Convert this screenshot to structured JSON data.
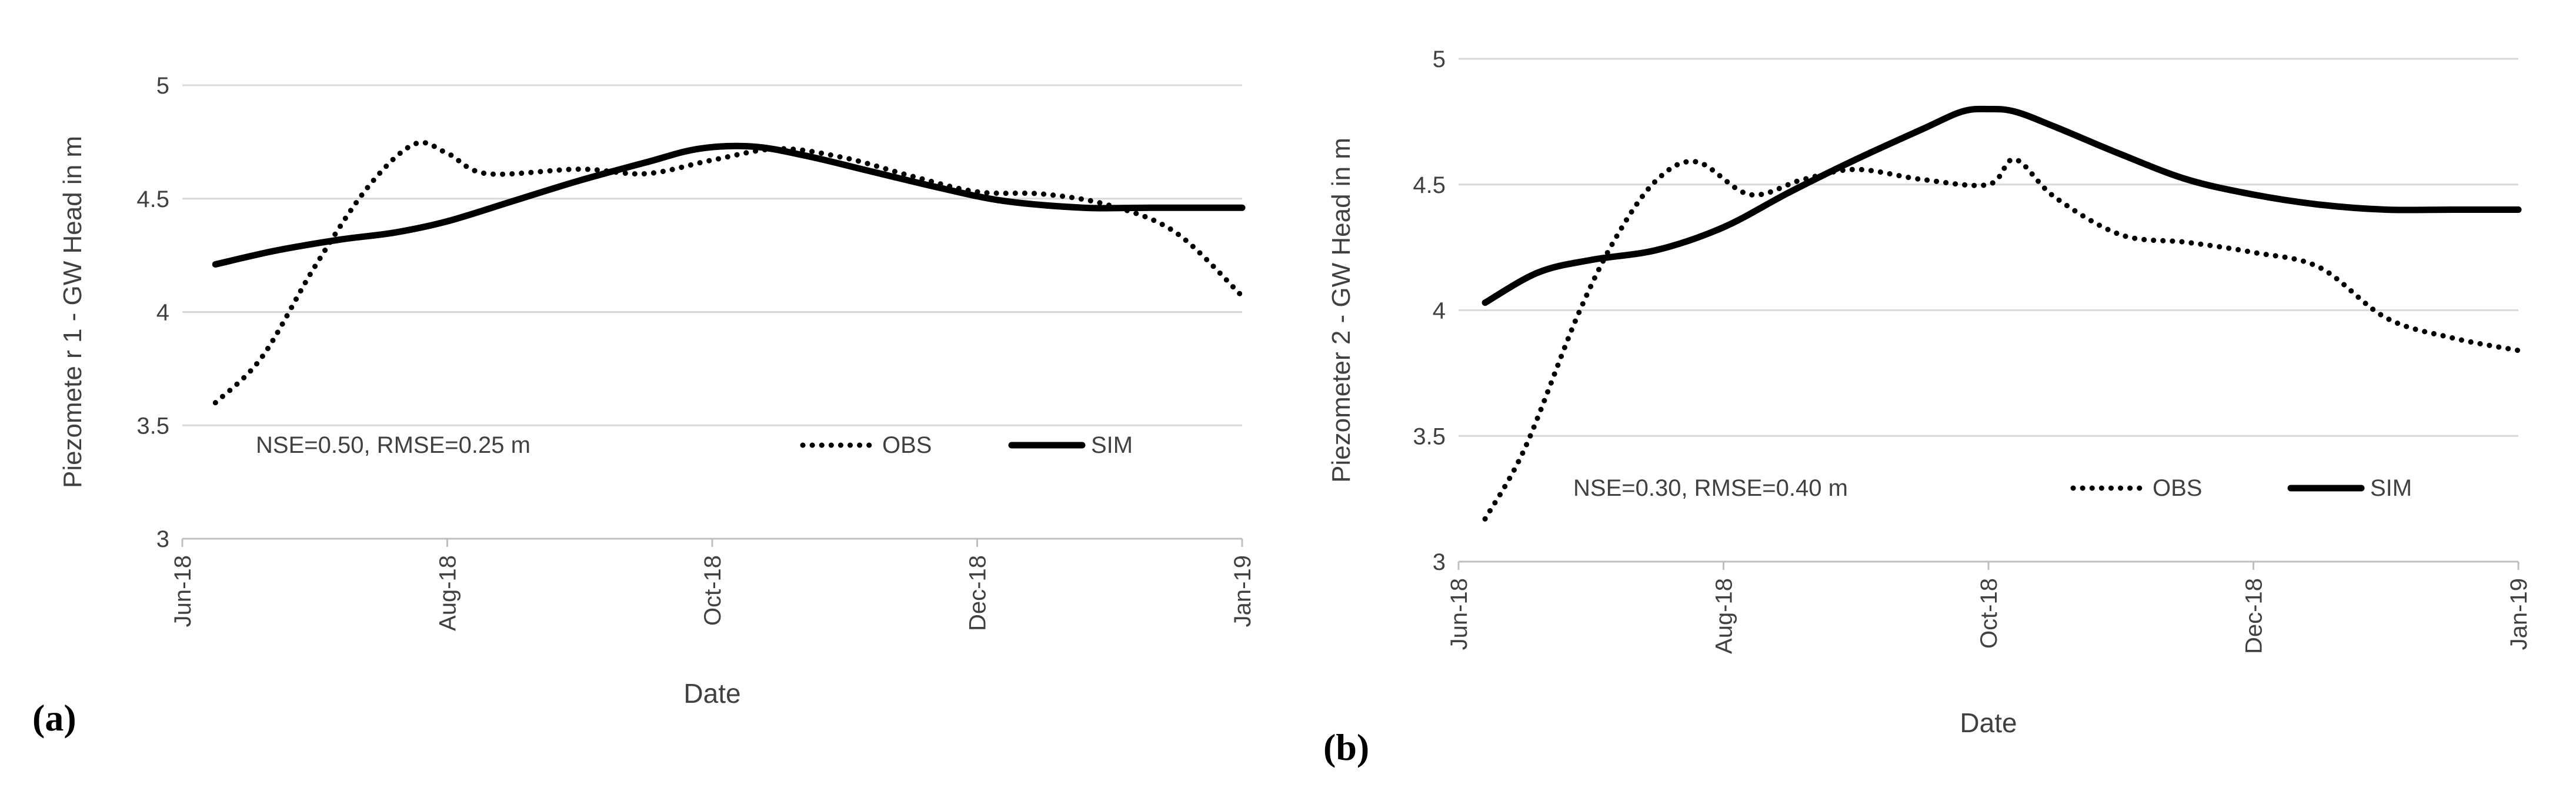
{
  "colors": {
    "grid": "#d9d9d9",
    "line": "#000000",
    "text": "#404040",
    "background": "#ffffff"
  },
  "chart_data": [
    {
      "type": "line",
      "panel_label": "(a)",
      "title": "",
      "xlabel": "Date",
      "ylabel": "Piezomete r 1 - GW Head in m",
      "x_tick_labels": [
        "Jun-18",
        "Aug-18",
        "Oct-18",
        "Dec-18",
        "Jan-19"
      ],
      "x_tick_months": [
        0,
        2,
        4,
        6,
        8
      ],
      "xlim": [
        0,
        8
      ],
      "ylim": [
        3,
        5
      ],
      "y_ticks": [
        3,
        3.5,
        4,
        4.5,
        5
      ],
      "y_tick_labels": [
        "3",
        "3.5",
        "4",
        "4.5",
        "5"
      ],
      "grid": "horizontal",
      "annotation": "NSE=0.50, RMSE=0.25 m",
      "legend_position": "bottom-right",
      "series": [
        {
          "name": "OBS",
          "style": "dotted",
          "x": [
            0.25,
            0.6,
            1.0,
            1.4,
            1.75,
            2.0,
            2.3,
            3.0,
            3.5,
            4.0,
            4.5,
            5.0,
            5.5,
            6.0,
            6.5,
            7.0,
            7.5,
            8.0
          ],
          "y": [
            3.6,
            3.8,
            4.2,
            4.55,
            4.74,
            4.7,
            4.61,
            4.63,
            4.61,
            4.67,
            4.72,
            4.68,
            4.6,
            4.53,
            4.52,
            4.47,
            4.35,
            4.07
          ]
        },
        {
          "name": "SIM",
          "style": "solid",
          "x": [
            0.25,
            0.7,
            1.2,
            1.6,
            2.0,
            2.5,
            3.0,
            3.5,
            3.9,
            4.3,
            4.7,
            5.2,
            5.7,
            6.2,
            6.8,
            7.3,
            8.0
          ],
          "y": [
            4.21,
            4.27,
            4.32,
            4.35,
            4.4,
            4.49,
            4.58,
            4.66,
            4.72,
            4.73,
            4.69,
            4.62,
            4.55,
            4.49,
            4.46,
            4.46,
            4.46
          ]
        }
      ]
    },
    {
      "type": "line",
      "panel_label": "(b)",
      "title": "",
      "xlabel": "Date",
      "ylabel": "Piezometer 2 - GW Head in m",
      "x_tick_labels": [
        "Jun-18",
        "Aug-18",
        "Oct-18",
        "Dec-18",
        "Jan-19"
      ],
      "x_tick_months": [
        0,
        2,
        4,
        6,
        8
      ],
      "xlim": [
        0,
        8
      ],
      "ylim": [
        3,
        5
      ],
      "y_ticks": [
        3,
        3.5,
        4,
        4.5,
        5
      ],
      "y_tick_labels": [
        "3",
        "3.5",
        "4",
        "4.5",
        "5"
      ],
      "grid": "horizontal",
      "annotation": "NSE=0.30, RMSE=0.40 m",
      "legend_position": "bottom-right",
      "series": [
        {
          "name": "OBS",
          "style": "dotted",
          "x": [
            0.2,
            0.5,
            0.9,
            1.2,
            1.5,
            1.8,
            2.2,
            2.6,
            3.0,
            3.5,
            4.0,
            4.2,
            4.5,
            5.0,
            5.5,
            6.0,
            6.5,
            7.0,
            7.5,
            8.0
          ],
          "y": [
            3.17,
            3.45,
            3.98,
            4.3,
            4.52,
            4.59,
            4.46,
            4.52,
            4.56,
            4.52,
            4.5,
            4.6,
            4.45,
            4.3,
            4.27,
            4.23,
            4.17,
            3.97,
            3.89,
            3.84
          ]
        },
        {
          "name": "SIM",
          "style": "solid",
          "x": [
            0.2,
            0.6,
            1.0,
            1.5,
            2.0,
            2.5,
            3.0,
            3.5,
            3.8,
            4.0,
            4.2,
            4.5,
            5.0,
            5.5,
            6.0,
            6.5,
            7.0,
            7.5,
            8.0
          ],
          "y": [
            4.03,
            4.15,
            4.2,
            4.24,
            4.33,
            4.47,
            4.6,
            4.72,
            4.79,
            4.8,
            4.79,
            4.73,
            4.62,
            4.52,
            4.46,
            4.42,
            4.4,
            4.4,
            4.4
          ]
        }
      ]
    }
  ]
}
